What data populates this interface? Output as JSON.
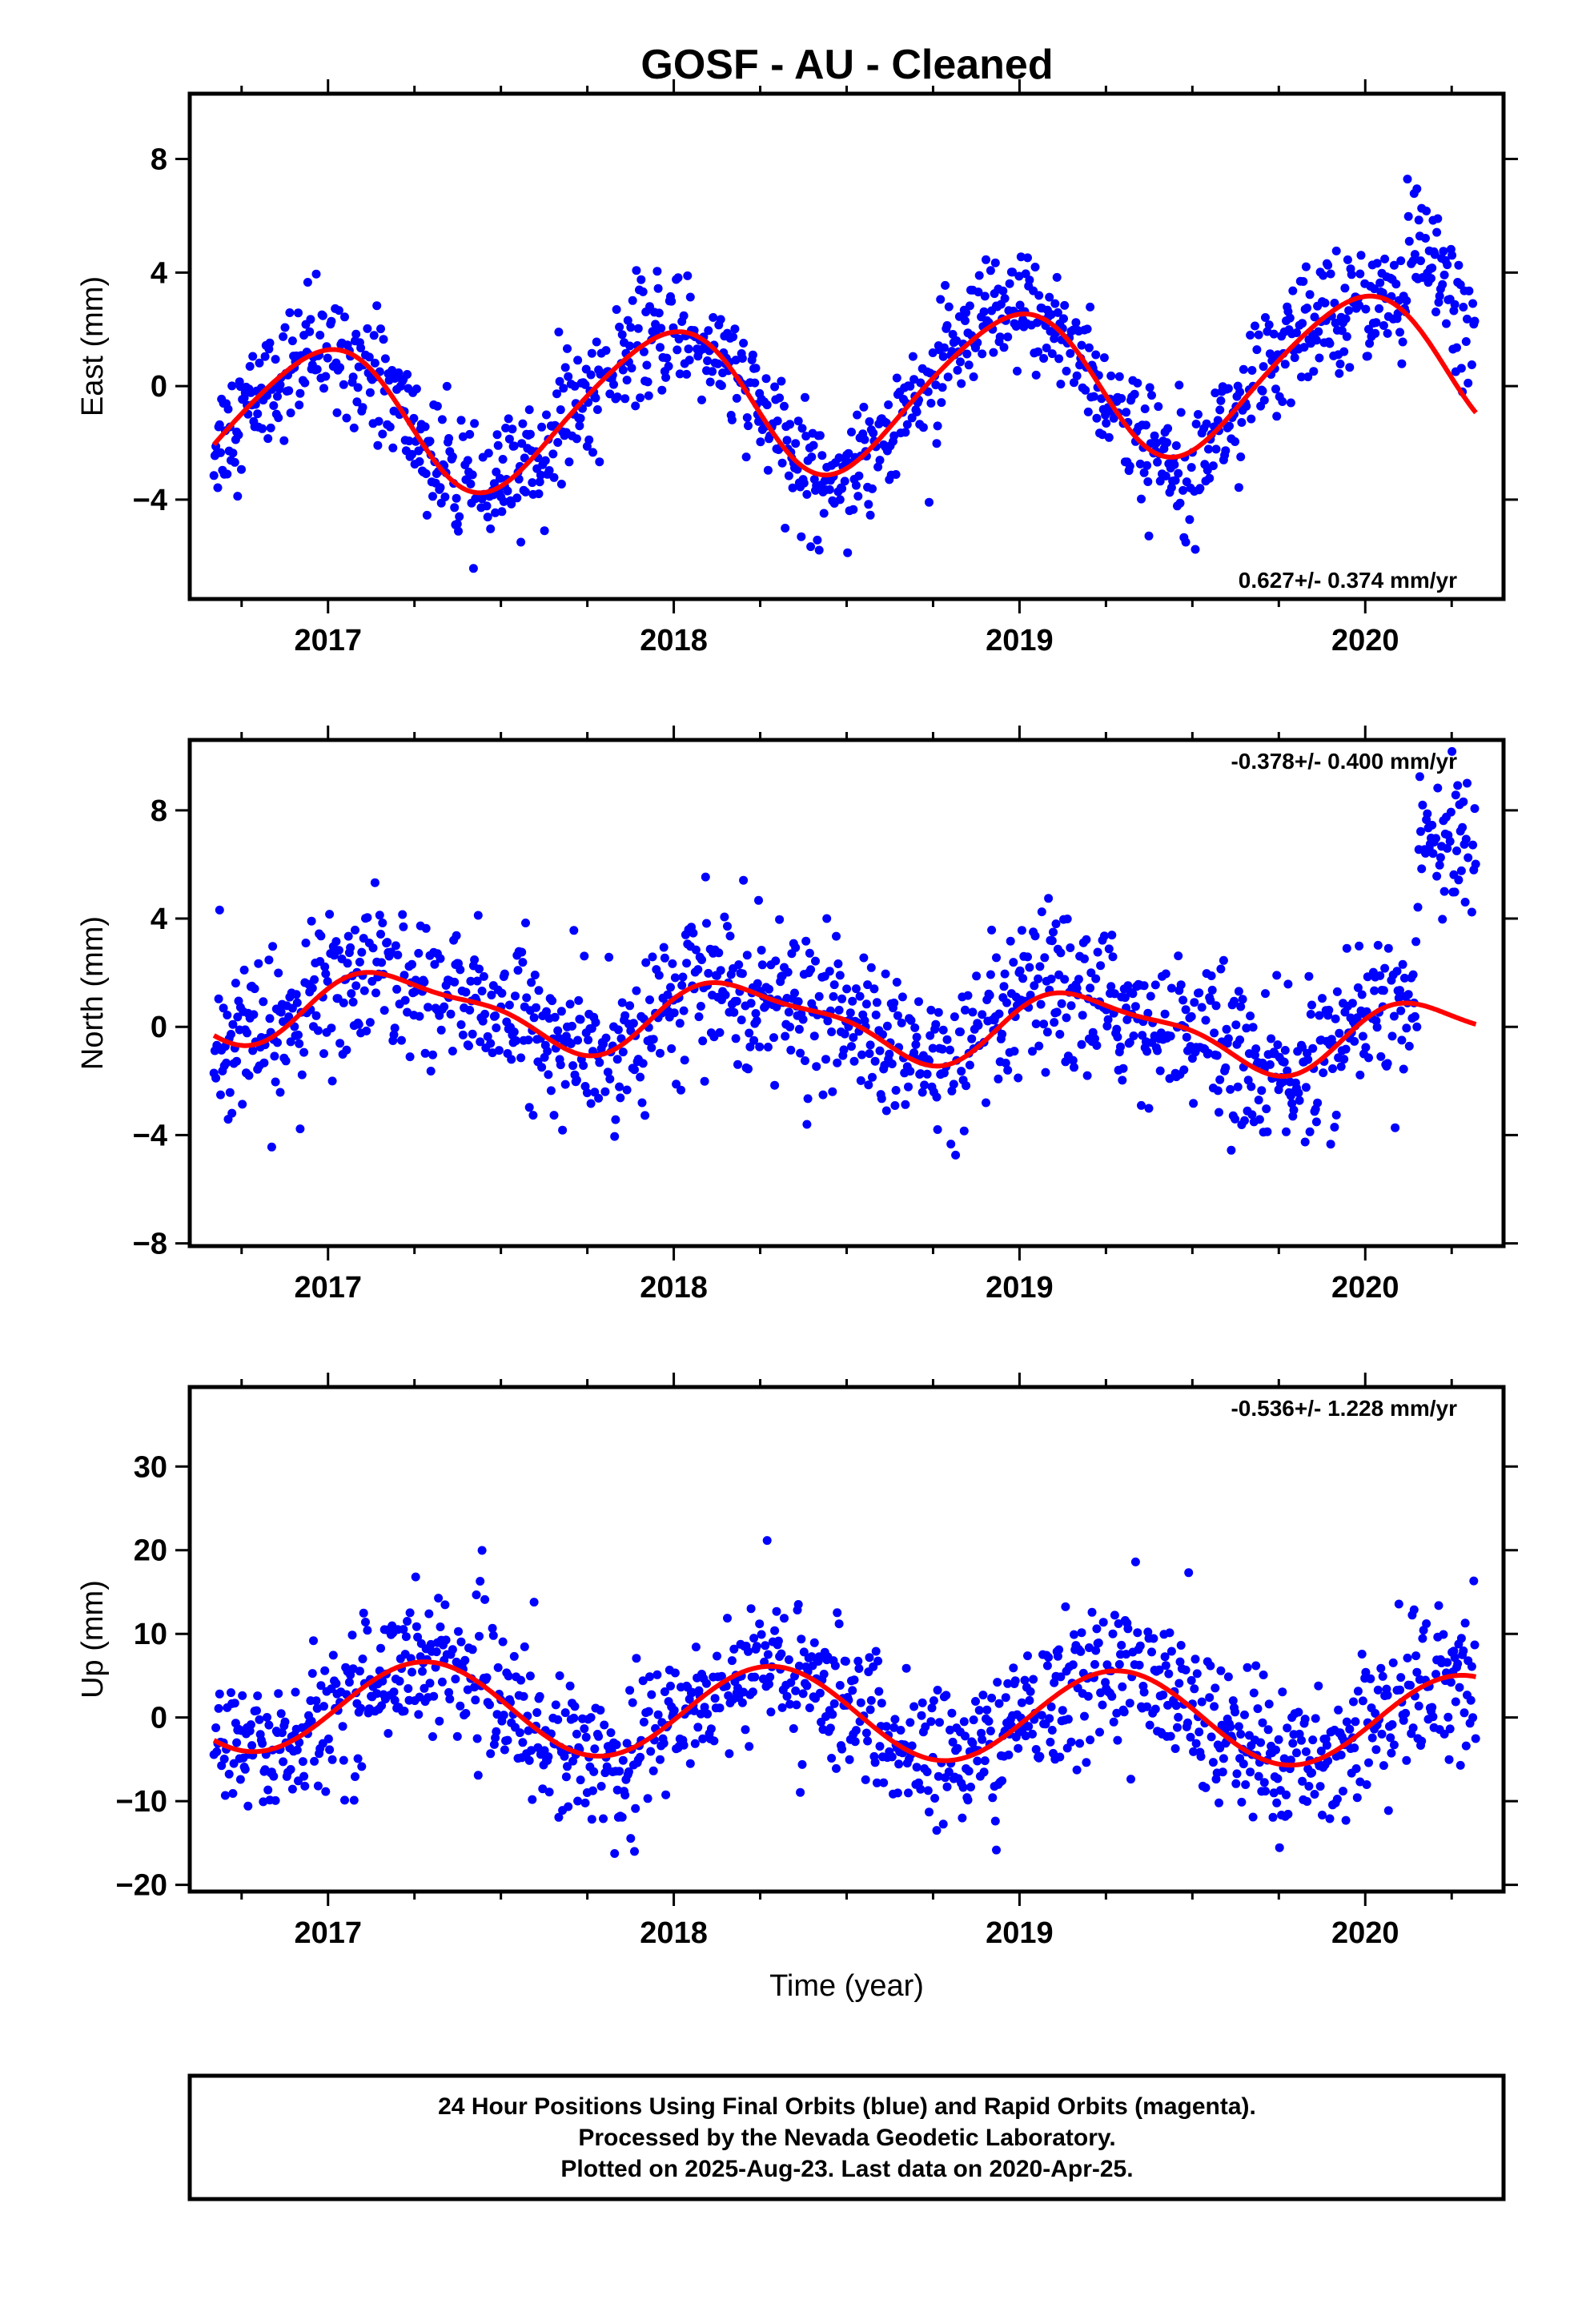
{
  "title": "GOSF  - AU - Cleaned",
  "colors": {
    "points": "#0000ff",
    "fit": "#ff0000",
    "axes": "#000000",
    "background": "#ffffff"
  },
  "footer": {
    "line1": "24 Hour Positions Using Final Orbits (blue) and Rapid Orbits (magenta).",
    "line2": "Processed by the Nevada Geodetic Laboratory.",
    "line3": "Plotted on 2025-Aug-23. Last data on 2020-Apr-25."
  },
  "chart_data": [
    {
      "type": "scatter",
      "component": "east",
      "ylabel": "East (mm)",
      "xlabel": "",
      "rate_label": "0.627+/- 0.374 mm/yr",
      "xlim": [
        2016.6,
        2020.4
      ],
      "ylim": [
        -7.5,
        10.3
      ],
      "xticks": [
        2017,
        2018,
        2019,
        2020
      ],
      "yticks": [
        -4,
        0,
        4,
        8
      ],
      "yticks_labels": [
        "−4",
        "0",
        "4",
        "8"
      ],
      "fit": {
        "mean": -0.34,
        "rate": 0.627,
        "amp": 2.6,
        "phase": 1.75,
        "semiamp": 0.3,
        "semiphase": 0.0,
        "t0": 2018.5
      },
      "data_start": 2016.67,
      "data_end": 2020.32,
      "noise_sd": 1.05,
      "jump": {
        "from": 2020.12,
        "to": 2020.32,
        "offset": 3.0
      },
      "series": [
        {
          "name": "Final Orbits",
          "x": [
            2016.67,
            2016.75,
            2016.83,
            2016.92,
            2017.0,
            2017.08,
            2017.17,
            2017.25,
            2017.33,
            2017.42,
            2017.5,
            2017.58,
            2017.67,
            2017.75,
            2017.83,
            2017.92,
            2018.0,
            2018.08,
            2018.17,
            2018.25,
            2018.33,
            2018.42,
            2018.5,
            2018.58,
            2018.67,
            2018.75,
            2018.83,
            2018.92,
            2019.0,
            2019.08,
            2019.17,
            2019.25,
            2019.33,
            2019.42,
            2019.5,
            2019.58,
            2019.67,
            2019.75,
            2019.83,
            2019.92,
            2020.0,
            2020.08,
            2020.17,
            2020.25,
            2020.32
          ],
          "y": [
            -1.4,
            -0.6,
            0.3,
            1.2,
            1.5,
            1.0,
            0.1,
            -1.2,
            -2.4,
            -3.1,
            -3.3,
            -2.6,
            -1.4,
            0.0,
            1.3,
            2.1,
            2.3,
            1.8,
            0.8,
            -0.6,
            -1.8,
            -2.6,
            -2.8,
            -2.2,
            -0.9,
            0.5,
            1.8,
            2.7,
            3.0,
            2.5,
            1.5,
            0.2,
            -1.1,
            -2.0,
            -2.3,
            -1.7,
            -0.5,
            1.0,
            2.3,
            3.2,
            3.3,
            6.0,
            5.8,
            5.2,
            4.8
          ]
        }
      ]
    },
    {
      "type": "scatter",
      "component": "north",
      "ylabel": "North (mm)",
      "xlabel": "",
      "rate_label": "-0.378+/- 0.400 mm/yr",
      "xlim": [
        2016.6,
        2020.4
      ],
      "ylim": [
        -8.1,
        10.6
      ],
      "xticks": [
        2017,
        2018,
        2019,
        2020
      ],
      "yticks": [
        -8,
        -4,
        0,
        4,
        8
      ],
      "yticks_labels": [
        "−8",
        "−4",
        "0",
        "4",
        "8"
      ],
      "fit": {
        "mean": 0.2,
        "rate": -0.378,
        "amp": 1.25,
        "phase": 0.25,
        "semiamp": 0.4,
        "semiphase": 1.0,
        "t0": 2018.5
      },
      "data_start": 2016.67,
      "data_end": 2020.32,
      "noise_sd": 1.35,
      "jump": {
        "from": 2020.15,
        "to": 2020.32,
        "offset": 6.5
      },
      "series": [
        {
          "name": "Final Orbits",
          "x": [
            2016.67,
            2016.83,
            2017.0,
            2017.17,
            2017.33,
            2017.5,
            2017.67,
            2017.83,
            2018.0,
            2018.17,
            2018.33,
            2018.5,
            2018.67,
            2018.83,
            2019.0,
            2019.17,
            2019.33,
            2019.5,
            2019.67,
            2019.83,
            2020.0,
            2020.17,
            2020.32
          ],
          "y": [
            0.5,
            -0.4,
            0.1,
            1.2,
            2.0,
            1.9,
            0.9,
            -0.6,
            -0.6,
            0.7,
            1.6,
            1.4,
            0.3,
            -1.2,
            -1.2,
            0.3,
            1.2,
            1.0,
            0.0,
            -1.3,
            -1.6,
            6.5,
            7.8
          ]
        }
      ]
    },
    {
      "type": "scatter",
      "component": "up",
      "ylabel": "Up (mm)",
      "xlabel": "Time (year)",
      "rate_label": "-0.536+/- 1.228 mm/yr",
      "xlim": [
        2016.6,
        2020.4
      ],
      "ylim": [
        -20.8,
        39.5
      ],
      "xticks": [
        2017,
        2018,
        2019,
        2020
      ],
      "yticks": [
        -20,
        -10,
        0,
        10,
        20,
        30
      ],
      "yticks_labels": [
        "−20",
        "−10",
        "0",
        "10",
        "20",
        "30"
      ],
      "fit": {
        "mean": 0.5,
        "rate": -0.536,
        "amp": 5.5,
        "phase": -0.2,
        "semiamp": 0.0,
        "semiphase": 0.0,
        "t0": 2018.5
      },
      "data_start": 2016.67,
      "data_end": 2020.32,
      "noise_sd": 4.2,
      "jump": null,
      "series": [
        {
          "name": "Final Orbits",
          "x": [
            2016.67,
            2016.83,
            2017.0,
            2017.17,
            2017.33,
            2017.5,
            2017.67,
            2017.83,
            2018.0,
            2018.17,
            2018.33,
            2018.5,
            2018.67,
            2018.83,
            2019.0,
            2019.17,
            2019.33,
            2019.5,
            2019.67,
            2019.83,
            2020.0,
            2020.17,
            2020.32
          ],
          "y": [
            -4.0,
            0.5,
            5.0,
            6.5,
            2.0,
            -3.0,
            -4.5,
            -1.5,
            4.0,
            6.0,
            3.0,
            -2.0,
            -4.8,
            -2.5,
            3.0,
            5.5,
            1.5,
            -3.5,
            -5.8,
            -2.0,
            3.5,
            4.5,
            0.5
          ]
        }
      ]
    }
  ]
}
